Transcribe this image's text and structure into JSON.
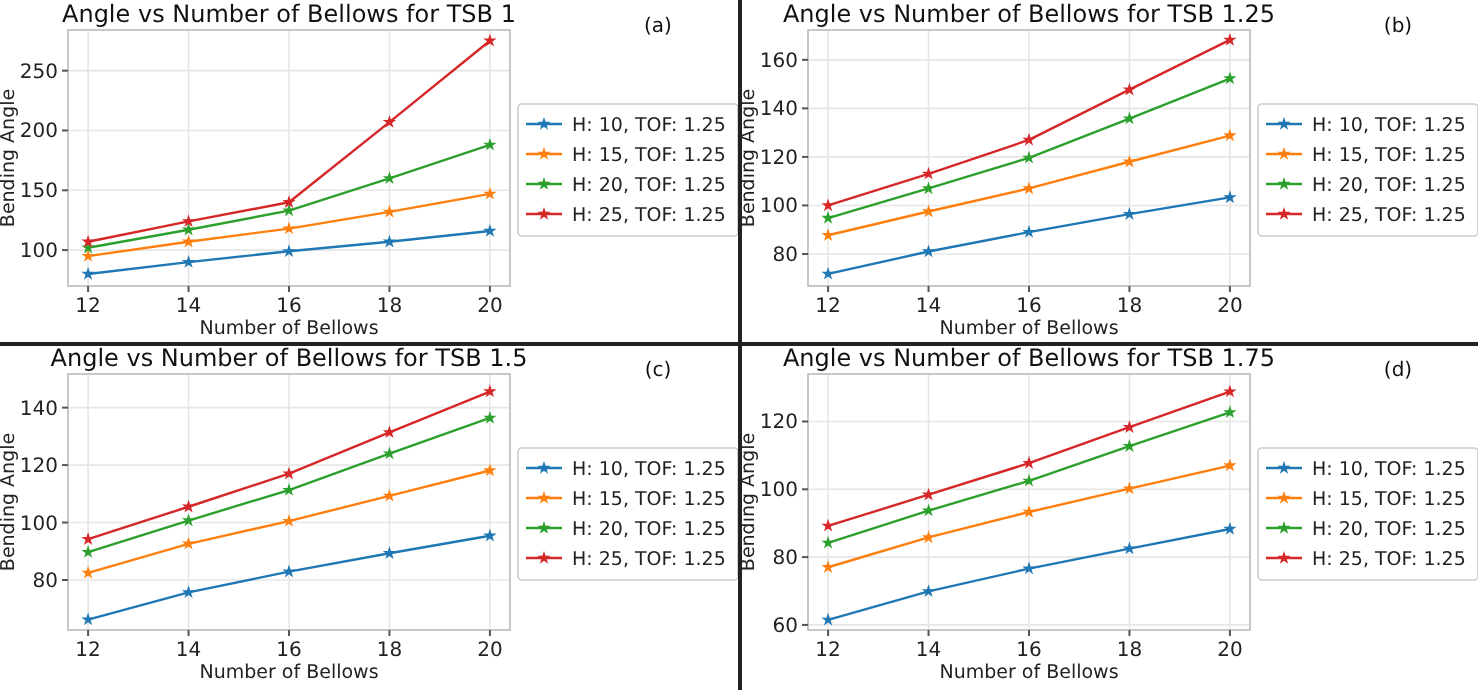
{
  "chart_data": [
    {
      "type": "line",
      "title": "Angle vs Number of Bellows for TSB 1",
      "xlabel": "Number of Bellows",
      "ylabel": "Bending Angle",
      "annotations": [
        "(a)"
      ],
      "x": [
        12,
        14,
        16,
        18,
        20
      ],
      "xlim": [
        11.6,
        20.4
      ],
      "xticks": [
        12,
        14,
        16,
        18,
        20
      ],
      "ylim": [
        70,
        284
      ],
      "yticks": [
        100,
        150,
        200,
        250
      ],
      "grid": true,
      "legend": "right",
      "marker": "star",
      "line_style": "solid",
      "series": [
        {
          "name": "H: 10, TOF: 1.25",
          "color": "#1f77b4",
          "values": [
            80,
            90,
            99,
            107,
            116
          ]
        },
        {
          "name": "H: 15, TOF: 1.25",
          "color": "#ff7f0e",
          "values": [
            95,
            107,
            118,
            132,
            147
          ]
        },
        {
          "name": "H: 20, TOF: 1.25",
          "color": "#2ca02c",
          "values": [
            102,
            117,
            133,
            160,
            188
          ]
        },
        {
          "name": "H: 25, TOF: 1.25",
          "color": "#d62728",
          "values": [
            107,
            124,
            140,
            207,
            275
          ]
        }
      ]
    },
    {
      "type": "line",
      "title": "Angle vs Number of Bellows for TSB 1.25",
      "xlabel": "Number of Bellows",
      "ylabel": "Bending Angle",
      "annotations": [
        "(b)"
      ],
      "x": [
        12,
        14,
        16,
        18,
        20
      ],
      "xlim": [
        11.6,
        20.4
      ],
      "xticks": [
        12,
        14,
        16,
        18,
        20
      ],
      "ylim": [
        66.8,
        172.3
      ],
      "yticks": [
        80,
        100,
        120,
        140,
        160
      ],
      "grid": true,
      "legend": "right",
      "marker": "star",
      "line_style": "solid",
      "series": [
        {
          "name": "H: 10, TOF: 1.25",
          "color": "#1f77b4",
          "values": [
            71.8,
            81,
            89,
            96.4,
            103.3
          ]
        },
        {
          "name": "H: 15, TOF: 1.25",
          "color": "#ff7f0e",
          "values": [
            87.7,
            97.5,
            107,
            118,
            128.8
          ]
        },
        {
          "name": "H: 20, TOF: 1.25",
          "color": "#2ca02c",
          "values": [
            94.8,
            107,
            119.6,
            135.8,
            152.3
          ]
        },
        {
          "name": "H: 25, TOF: 1.25",
          "color": "#d62728",
          "values": [
            100,
            113,
            127,
            147.7,
            168.2
          ]
        }
      ]
    },
    {
      "type": "line",
      "title": "Angle vs Number of Bellows for TSB 1.5",
      "xlabel": "Number of Bellows",
      "ylabel": "Bending Angle",
      "annotations": [
        "(c)"
      ],
      "x": [
        12,
        14,
        16,
        18,
        20
      ],
      "xlim": [
        11.6,
        20.4
      ],
      "xticks": [
        12,
        14,
        16,
        18,
        20
      ],
      "ylim": [
        62.6,
        151.7
      ],
      "yticks": [
        80,
        100,
        120,
        140
      ],
      "grid": true,
      "legend": "right",
      "marker": "star",
      "line_style": "solid",
      "series": [
        {
          "name": "H: 10, TOF: 1.25",
          "color": "#1f77b4",
          "values": [
            66.2,
            75.7,
            82.9,
            89.3,
            95.4
          ]
        },
        {
          "name": "H: 15, TOF: 1.25",
          "color": "#ff7f0e",
          "values": [
            82.5,
            92.6,
            100.5,
            109.3,
            118.1
          ]
        },
        {
          "name": "H: 20, TOF: 1.25",
          "color": "#2ca02c",
          "values": [
            89.7,
            100.7,
            111.3,
            124,
            136.4
          ]
        },
        {
          "name": "H: 25, TOF: 1.25",
          "color": "#d62728",
          "values": [
            94.2,
            105.5,
            117,
            131.4,
            145.6
          ]
        }
      ]
    },
    {
      "type": "line",
      "title": "Angle vs Number of Bellows for TSB 1.75",
      "xlabel": "Number of Bellows",
      "ylabel": "Bending Angle",
      "annotations": [
        "(d)"
      ],
      "x": [
        12,
        14,
        16,
        18,
        20
      ],
      "xlim": [
        11.6,
        20.4
      ],
      "xticks": [
        12,
        14,
        16,
        18,
        20
      ],
      "ylim": [
        58.5,
        134
      ],
      "yticks": [
        60,
        80,
        100,
        120
      ],
      "grid": true,
      "legend": "right",
      "marker": "star",
      "line_style": "solid",
      "series": [
        {
          "name": "H: 10, TOF: 1.25",
          "color": "#1f77b4",
          "values": [
            61.5,
            69.9,
            76.6,
            82.5,
            88.3
          ]
        },
        {
          "name": "H: 15, TOF: 1.25",
          "color": "#ff7f0e",
          "values": [
            77,
            85.8,
            93.3,
            100.2,
            107
          ]
        },
        {
          "name": "H: 20, TOF: 1.25",
          "color": "#2ca02c",
          "values": [
            84.2,
            93.7,
            102.5,
            112.7,
            122.7
          ]
        },
        {
          "name": "H: 25, TOF: 1.25",
          "color": "#d62728",
          "values": [
            89.2,
            98.4,
            107.7,
            118.3,
            128.8
          ]
        }
      ]
    }
  ]
}
